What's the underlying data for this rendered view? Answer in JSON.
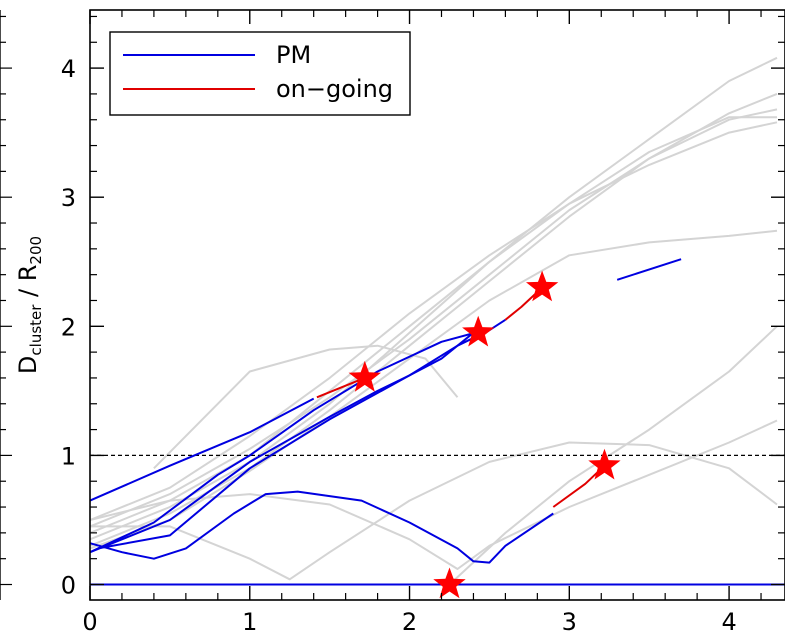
{
  "chart_data": {
    "type": "line",
    "title": "",
    "xlabel": "",
    "ylabel": {
      "main": "D",
      "main_sub": "cluster",
      "sep": " / ",
      "denom": "R",
      "denom_sub": "200"
    },
    "xlim": [
      0,
      4.35
    ],
    "ylim": [
      -0.12,
      4.45
    ],
    "x_ticks": [
      0,
      1,
      2,
      3,
      4
    ],
    "x_tick_labels": [
      "0",
      "1",
      "2",
      "3",
      "4"
    ],
    "y_ticks": [
      0,
      1,
      2,
      3,
      4
    ],
    "y_tick_labels": [
      "0",
      "1",
      "2",
      "3",
      "4"
    ],
    "grid": false,
    "legend": {
      "placement": "top-left",
      "entries": [
        {
          "label": "PM",
          "color": "#0000e0"
        },
        {
          "label": "on−going",
          "color": "#e00000"
        }
      ]
    },
    "reference_line": {
      "y": 1.0,
      "style": "dashed",
      "color": "#000000"
    },
    "colors": {
      "pm": "#0000e0",
      "ongoing": "#e00000",
      "background_tracks": "#d4d4d4",
      "star": "#ff0000"
    },
    "background_tracks": [
      [
        [
          0.0,
          0.45
        ],
        [
          0.5,
          0.7
        ],
        [
          1.0,
          1.05
        ],
        [
          1.5,
          1.45
        ],
        [
          2.0,
          1.9
        ],
        [
          2.5,
          2.4
        ],
        [
          3.0,
          2.9
        ],
        [
          3.5,
          3.3
        ],
        [
          4.0,
          3.65
        ],
        [
          4.3,
          3.8
        ]
      ],
      [
        [
          0.0,
          0.35
        ],
        [
          0.5,
          0.6
        ],
        [
          1.0,
          0.95
        ],
        [
          1.5,
          1.4
        ],
        [
          2.0,
          1.95
        ],
        [
          2.5,
          2.5
        ],
        [
          3.0,
          3.0
        ],
        [
          3.5,
          3.45
        ],
        [
          4.0,
          3.9
        ],
        [
          4.3,
          4.08
        ]
      ],
      [
        [
          0.0,
          0.3
        ],
        [
          0.5,
          0.55
        ],
        [
          1.0,
          0.9
        ],
        [
          1.5,
          1.35
        ],
        [
          2.0,
          1.85
        ],
        [
          2.5,
          2.35
        ],
        [
          3.0,
          2.85
        ],
        [
          3.5,
          3.3
        ],
        [
          4.0,
          3.6
        ],
        [
          4.3,
          3.68
        ]
      ],
      [
        [
          0.0,
          0.5
        ],
        [
          0.5,
          0.75
        ],
        [
          1.0,
          1.15
        ],
        [
          1.5,
          1.6
        ],
        [
          2.0,
          2.1
        ],
        [
          2.5,
          2.55
        ],
        [
          3.0,
          2.95
        ],
        [
          3.5,
          3.25
        ],
        [
          4.0,
          3.5
        ],
        [
          4.3,
          3.58
        ]
      ],
      [
        [
          0.0,
          0.4
        ],
        [
          0.5,
          0.65
        ],
        [
          1.0,
          1.0
        ],
        [
          1.5,
          1.5
        ],
        [
          2.0,
          2.0
        ],
        [
          2.5,
          2.5
        ],
        [
          3.0,
          2.95
        ],
        [
          3.5,
          3.35
        ],
        [
          4.0,
          3.62
        ],
        [
          4.3,
          3.62
        ]
      ],
      [
        [
          0.0,
          0.28
        ],
        [
          0.5,
          0.5
        ],
        [
          1.0,
          0.88
        ],
        [
          1.5,
          1.3
        ],
        [
          2.0,
          1.75
        ],
        [
          2.5,
          2.2
        ],
        [
          3.0,
          2.55
        ],
        [
          3.5,
          2.65
        ],
        [
          4.0,
          2.7
        ],
        [
          4.3,
          2.74
        ]
      ],
      [
        [
          0.0,
          0.45
        ],
        [
          0.5,
          0.45
        ],
        [
          1.0,
          0.2
        ],
        [
          1.25,
          0.04
        ],
        [
          1.5,
          0.25
        ],
        [
          2.0,
          0.65
        ],
        [
          2.5,
          0.95
        ],
        [
          3.0,
          1.1
        ],
        [
          3.5,
          1.08
        ],
        [
          4.0,
          0.9
        ],
        [
          4.3,
          0.62
        ]
      ],
      [
        [
          0.0,
          0.5
        ],
        [
          0.5,
          0.65
        ],
        [
          1.0,
          0.7
        ],
        [
          1.5,
          0.62
        ],
        [
          2.0,
          0.35
        ],
        [
          2.3,
          0.12
        ],
        [
          2.5,
          0.3
        ],
        [
          3.0,
          0.6
        ],
        [
          3.5,
          0.85
        ],
        [
          4.0,
          1.1
        ],
        [
          4.3,
          1.27
        ]
      ],
      [
        [
          2.25,
          0.0
        ],
        [
          2.6,
          0.4
        ],
        [
          3.0,
          0.8
        ],
        [
          3.5,
          1.2
        ],
        [
          4.0,
          1.65
        ],
        [
          4.3,
          2.0
        ]
      ],
      [
        [
          0.4,
          0.9
        ],
        [
          1.0,
          1.65
        ],
        [
          1.5,
          1.82
        ],
        [
          1.8,
          1.85
        ],
        [
          2.1,
          1.75
        ],
        [
          2.3,
          1.45
        ]
      ]
    ],
    "pm_tracks": [
      [
        [
          0.0,
          0.65
        ],
        [
          0.5,
          0.92
        ],
        [
          1.0,
          1.18
        ],
        [
          1.4,
          1.44
        ]
      ],
      [
        [
          0.0,
          0.25
        ],
        [
          0.5,
          0.5
        ],
        [
          1.0,
          0.95
        ],
        [
          1.5,
          1.3
        ],
        [
          1.8,
          1.5
        ],
        [
          2.0,
          1.62
        ],
        [
          2.2,
          1.75
        ],
        [
          2.4,
          1.95
        ]
      ],
      [
        [
          0.05,
          0.28
        ],
        [
          0.5,
          0.38
        ],
        [
          1.0,
          0.9
        ],
        [
          1.5,
          1.28
        ],
        [
          2.0,
          1.62
        ],
        [
          2.3,
          1.85
        ],
        [
          2.5,
          1.97
        ],
        [
          2.6,
          2.05
        ]
      ],
      [
        [
          0.0,
          0.32
        ],
        [
          0.2,
          0.25
        ],
        [
          0.4,
          0.2
        ],
        [
          0.6,
          0.28
        ],
        [
          0.9,
          0.55
        ],
        [
          1.1,
          0.7
        ],
        [
          1.3,
          0.72
        ],
        [
          1.7,
          0.65
        ],
        [
          2.0,
          0.48
        ],
        [
          2.3,
          0.28
        ],
        [
          2.4,
          0.18
        ],
        [
          2.5,
          0.17
        ],
        [
          2.6,
          0.3
        ],
        [
          2.9,
          0.55
        ]
      ],
      [
        [
          0.0,
          0.25
        ],
        [
          0.4,
          0.48
        ],
        [
          0.8,
          0.85
        ],
        [
          1.0,
          1.0
        ],
        [
          1.4,
          1.35
        ],
        [
          1.8,
          1.65
        ],
        [
          2.2,
          1.88
        ],
        [
          2.5,
          1.98
        ]
      ],
      [
        [
          0.0,
          0.0
        ],
        [
          4.35,
          0.0
        ]
      ],
      [
        [
          3.3,
          2.36
        ],
        [
          3.7,
          2.52
        ]
      ]
    ],
    "ongoing_tracks": [
      [
        [
          1.42,
          1.45
        ],
        [
          1.72,
          1.6
        ]
      ],
      [
        [
          2.6,
          2.05
        ],
        [
          2.7,
          2.15
        ],
        [
          2.83,
          2.3
        ]
      ],
      [
        [
          2.9,
          0.6
        ],
        [
          3.1,
          0.78
        ],
        [
          3.22,
          0.92
        ]
      ]
    ],
    "stars": [
      {
        "x": 1.72,
        "y": 1.6
      },
      {
        "x": 2.43,
        "y": 1.95
      },
      {
        "x": 2.83,
        "y": 2.3
      },
      {
        "x": 3.22,
        "y": 0.92
      },
      {
        "x": 2.25,
        "y": 0.0
      }
    ]
  }
}
